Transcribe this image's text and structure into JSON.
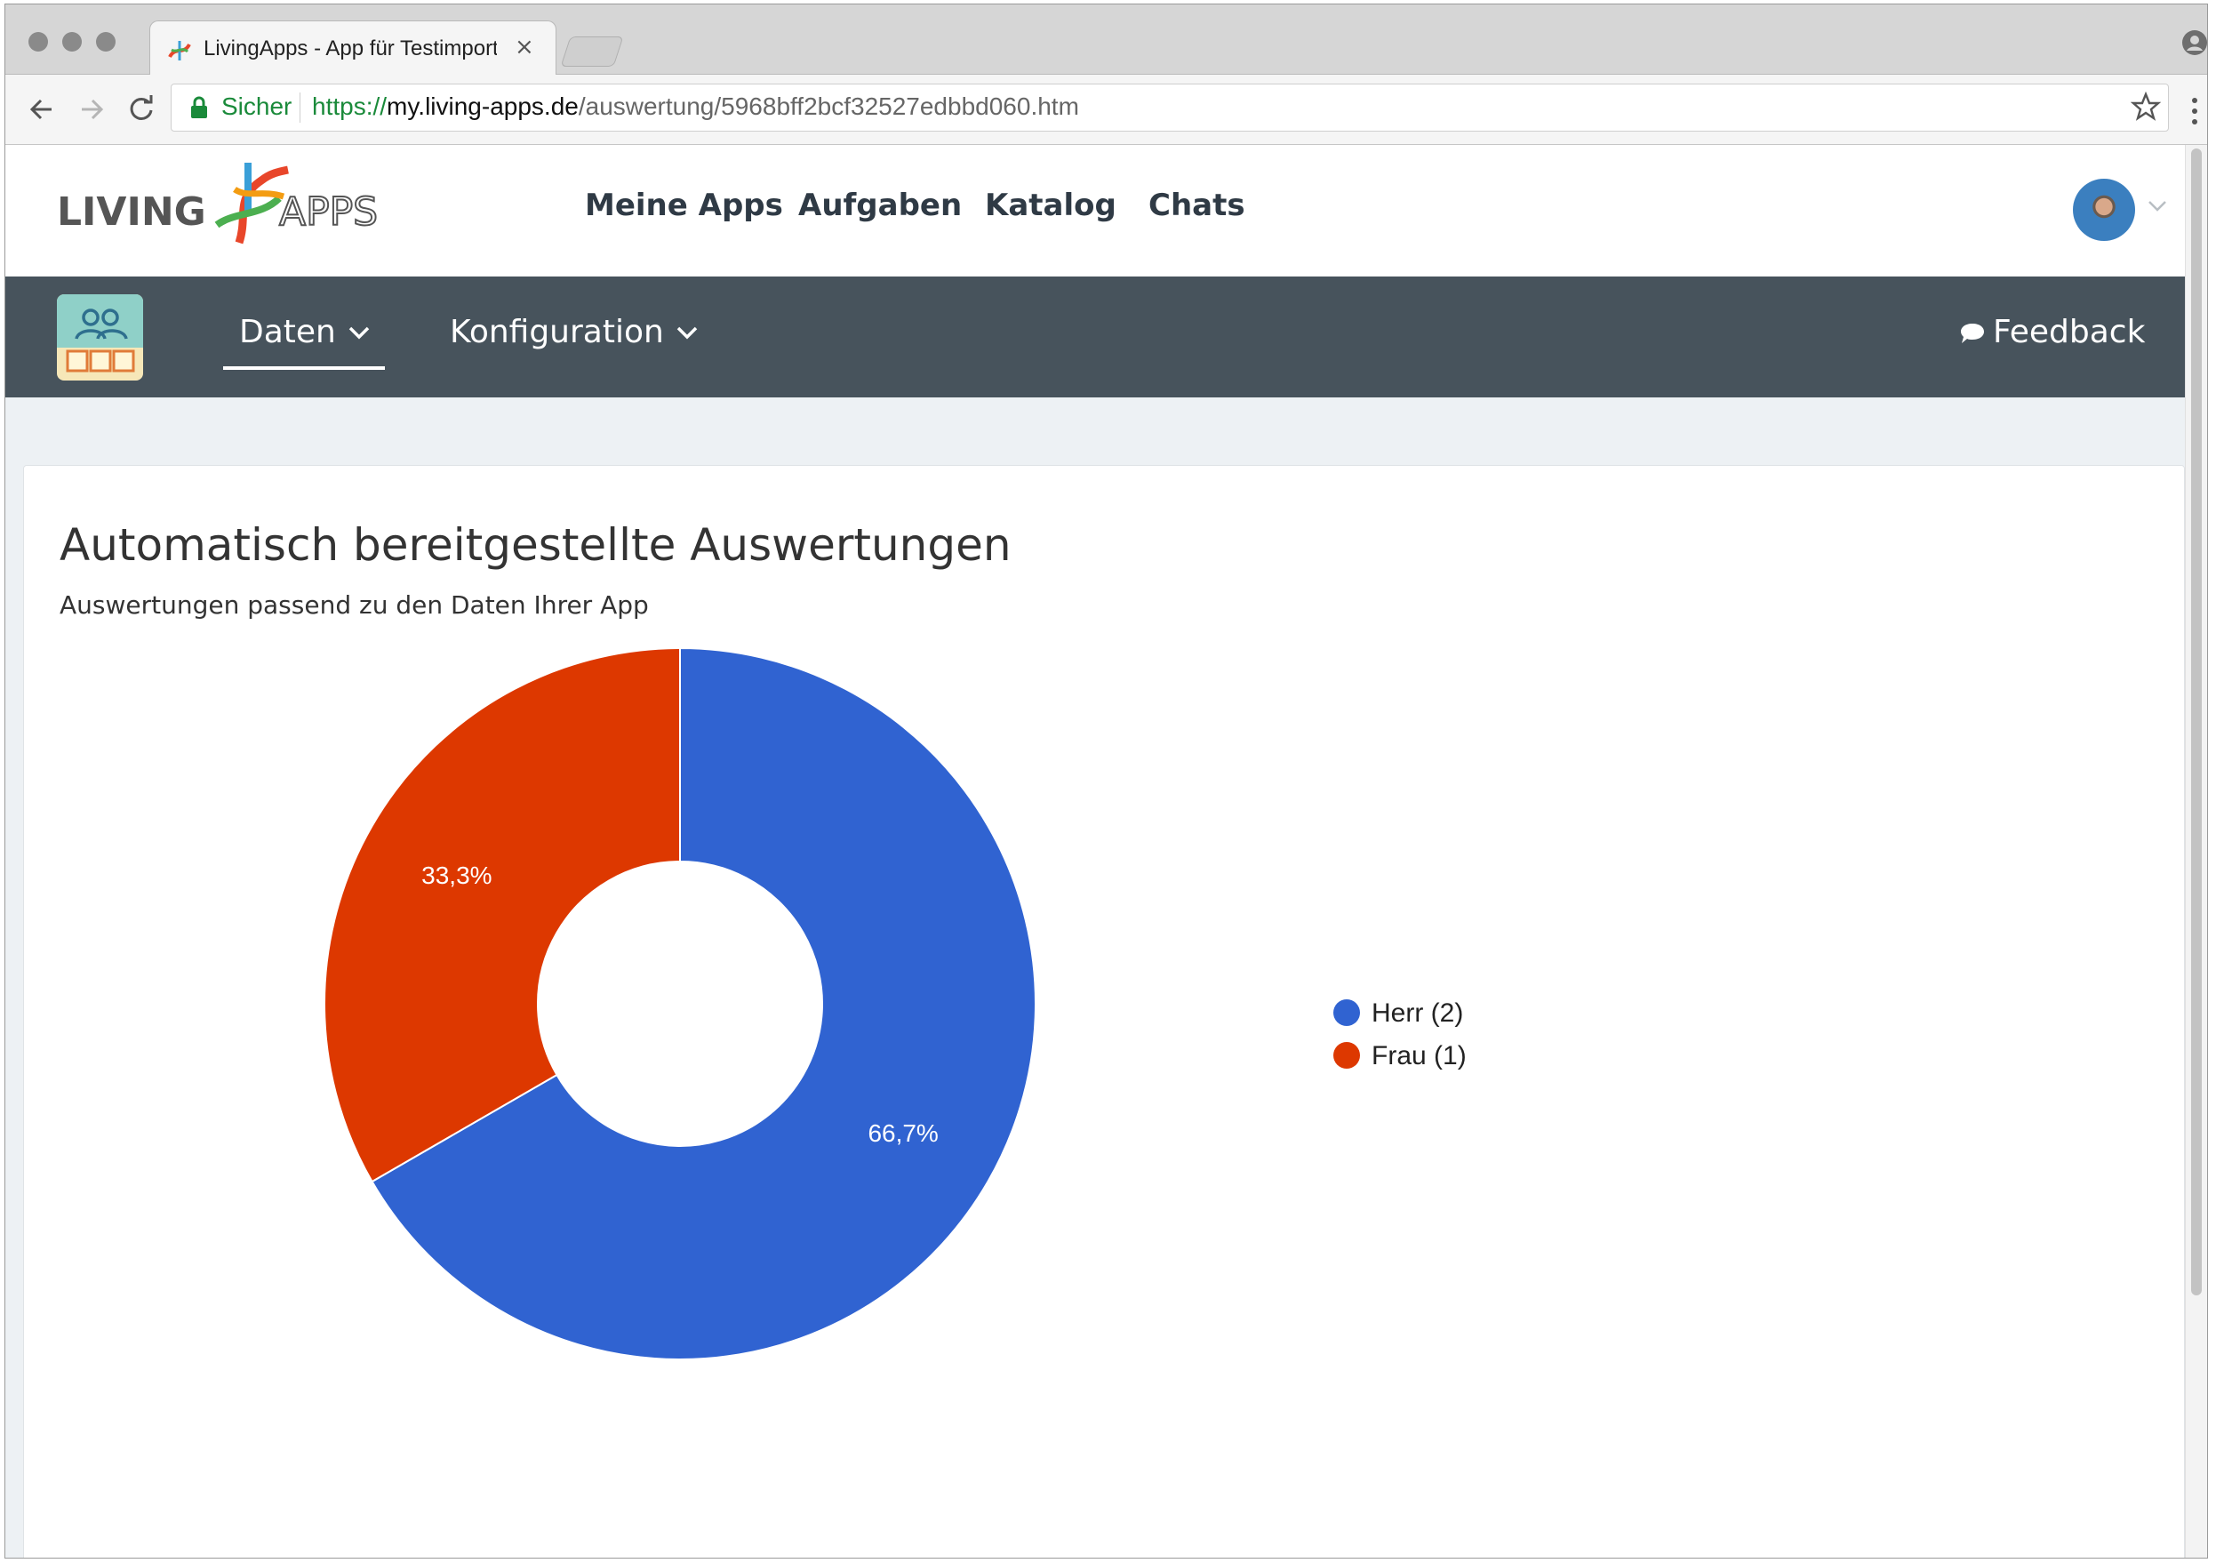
{
  "browser": {
    "tab_title": "LivingApps - App für Testimport",
    "tab_close": "×",
    "secure_label": "Sicher",
    "url_scheme": "https://",
    "url_host": "my.living-apps.de",
    "url_path": "/auswertung/5968bff2bcf32527edbbd060.htm"
  },
  "topnav": {
    "logo_text": "LIVINGAPPS",
    "items": [
      "Meine Apps",
      "Aufgaben",
      "Katalog",
      "Chats"
    ]
  },
  "subnav": {
    "items": [
      "Daten",
      "Konfiguration"
    ],
    "active": "Daten",
    "feedback_label": "Feedback"
  },
  "card": {
    "title": "Automatisch bereitgestellte Auswertungen",
    "subtitle": "Auswertungen passend zu den Daten Ihrer App"
  },
  "chart_data": {
    "type": "pie",
    "variant": "donut",
    "slices": [
      {
        "label": "Herr (2)",
        "value": 2,
        "percent_label": "66,7%",
        "color": "#3063d1"
      },
      {
        "label": "Frau (1)",
        "value": 1,
        "percent_label": "33,3%",
        "color": "#dd3800"
      }
    ],
    "legend_position": "right"
  },
  "colors": {
    "subnav_bg": "#47535c",
    "page_bg": "#edf1f4",
    "secure_green": "#1a8a3a"
  }
}
